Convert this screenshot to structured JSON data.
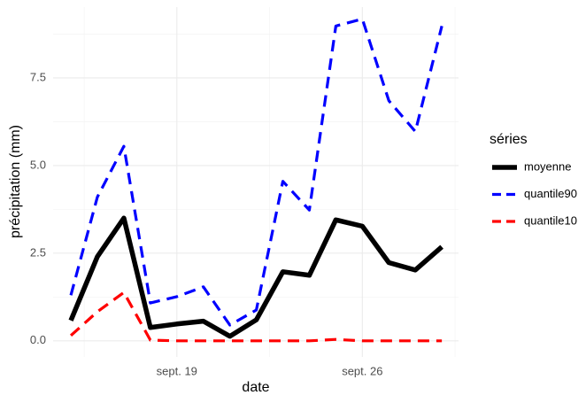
{
  "chart_data": {
    "type": "line",
    "x_label": "date",
    "y_label": "précipitation (mm)",
    "x": [
      15,
      16,
      17,
      18,
      19,
      20,
      21,
      22,
      23,
      24,
      25,
      26,
      27,
      28,
      29
    ],
    "xlim": [
      14.33,
      29.63
    ],
    "xticks": [
      {
        "value": 19,
        "label": "sept. 19"
      },
      {
        "value": 26,
        "label": "sept. 26"
      }
    ],
    "ylim": [
      -0.46,
      9.52
    ],
    "yticks": [
      {
        "value": 0,
        "label": "0.0"
      },
      2.5,
      {
        "value": 5,
        "label": "5.0"
      },
      7.5
    ],
    "grid": true,
    "legend_title": "séries",
    "series": [
      {
        "name": "moyenne",
        "color": "#000000",
        "dash": "solid",
        "values": [
          0.58,
          2.4,
          3.5,
          0.38,
          0.48,
          0.56,
          0.13,
          0.6,
          1.97,
          1.87,
          3.45,
          3.27,
          2.23,
          2.02,
          2.68
        ]
      },
      {
        "name": "quantile90",
        "color": "#0000ff",
        "dash": "dashed",
        "values": [
          1.3,
          4.1,
          5.55,
          1.08,
          1.26,
          1.54,
          0.45,
          0.88,
          4.55,
          3.73,
          8.98,
          9.18,
          6.85,
          5.97,
          8.98
        ]
      },
      {
        "name": "quantile10",
        "color": "#ff0000",
        "dash": "dashed",
        "values": [
          0.15,
          0.83,
          1.38,
          0.02,
          0,
          0,
          0,
          0,
          0,
          0,
          0.04,
          0,
          0,
          0,
          0
        ]
      }
    ]
  }
}
